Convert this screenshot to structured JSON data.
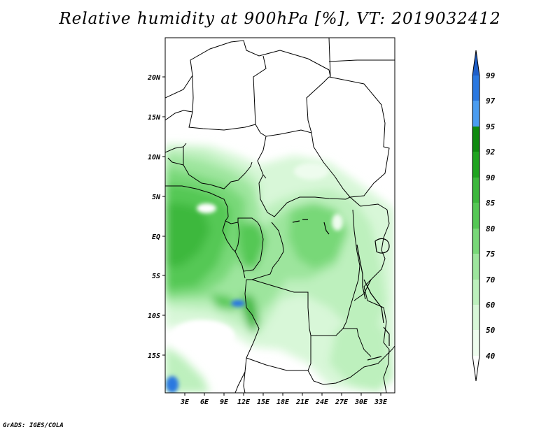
{
  "title": "Relative humidity at 900hPa [%], VT: 2019032412",
  "credit": "GrADS: IGES/COLA",
  "map": {
    "lat_labels": [
      "20N",
      "15N",
      "10N",
      "5N",
      "EQ",
      "5S",
      "10S",
      "15S"
    ],
    "lon_labels": [
      "3E",
      "6E",
      "9E",
      "12E",
      "15E",
      "18E",
      "21E",
      "24E",
      "27E",
      "30E",
      "33E"
    ]
  },
  "colorbar": {
    "labels": [
      "99",
      "97",
      "95",
      "92",
      "90",
      "85",
      "80",
      "75",
      "70",
      "60",
      "50",
      "40"
    ],
    "colors": [
      "#1e5ec8",
      "#2a78e0",
      "#4a9cf0",
      "#0e8a0e",
      "#1fa41f",
      "#3cb83c",
      "#55c855",
      "#78d878",
      "#9de59d",
      "#bdf0bd",
      "#d8f7d8",
      "#eefcee",
      "#ffffff"
    ]
  }
}
